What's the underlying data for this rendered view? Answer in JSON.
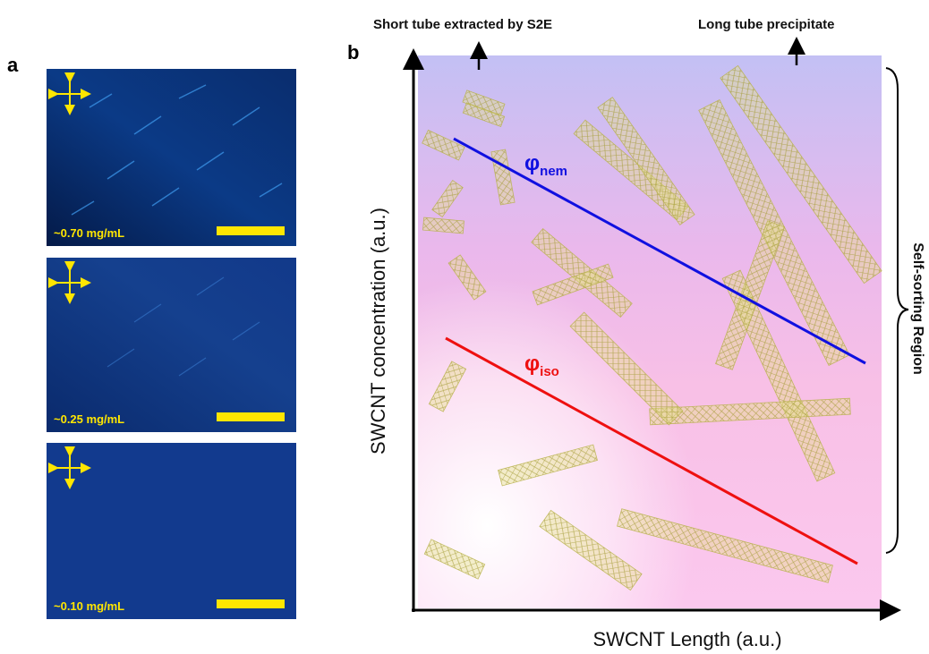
{
  "panels": [
    {
      "label": "a",
      "images": [
        {
          "concentration": "~0.70 mg/mL"
        },
        {
          "concentration": "~0.25 mg/mL"
        },
        {
          "concentration": "~0.10 mg/mL"
        }
      ]
    },
    {
      "label": "b",
      "top_labels": [
        "Short tube extracted by S2E",
        "Long tube precipitate"
      ],
      "y_axis_label": "SWCNT concentration (a.u.)",
      "x_axis_label": "SWCNT Length (a.u.)",
      "region_label": "Self-sorting Region",
      "lines": [
        {
          "symbol": "φ",
          "subscript": "nem"
        },
        {
          "symbol": "φ",
          "subscript": "iso"
        }
      ]
    }
  ]
}
